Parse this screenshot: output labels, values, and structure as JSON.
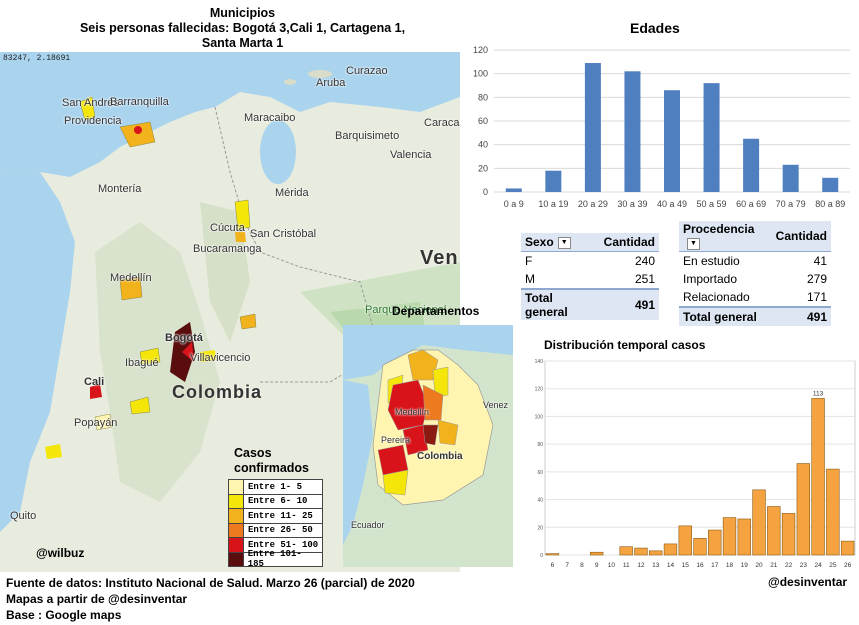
{
  "title": {
    "line1": "Municipios",
    "line2": "Seis personas fallecidas:  Bogotá 3,Cali 1, Cartagena 1,",
    "line3": "Santa Marta 1"
  },
  "map1": {
    "coords": "83247, 2.18691",
    "labels": [
      "San Andrés",
      "Providencia",
      "Barranquilla",
      "Curazao",
      "Aruba",
      "Maracaibo",
      "Barquisimeto",
      "Caracas",
      "Valencia",
      "Montería",
      "Mérida",
      "Cúcuta",
      "San Cristóbal",
      "Bucaramanga",
      "Medellín",
      "Ven",
      "Parque Nacional",
      "Bogotá",
      "Ibagué",
      "Villavicencio",
      "Cali",
      "Popayán",
      "Quito"
    ],
    "country": "Colombia",
    "legend_title": "Casos confirmados",
    "legend": [
      {
        "label": "Entre 1- 5",
        "color": "#fff5b0"
      },
      {
        "label": "Entre 6- 10",
        "color": "#f5e60a"
      },
      {
        "label": "Entre 11- 25",
        "color": "#f2b21c"
      },
      {
        "label": "Entre 26- 50",
        "color": "#ee7a20"
      },
      {
        "label": "Entre 51- 100",
        "color": "#d8141a"
      },
      {
        "label": "Entre 101- 185",
        "color": "#5a0d0d"
      }
    ],
    "credit": "@wilbuz"
  },
  "map2": {
    "title": "Departamentos",
    "labels": [
      "Medellín",
      "Pereira",
      "Colombia",
      "Ecuador",
      "Venez"
    ]
  },
  "chart_data": [
    {
      "type": "bar",
      "title": "Edades",
      "categories": [
        "0 a 9",
        "10 a 19",
        "20 a 29",
        "30 a 39",
        "40 a 49",
        "50 a 59",
        "60 a 69",
        "70 a 79",
        "80 a 89"
      ],
      "values": [
        3,
        18,
        109,
        102,
        86,
        92,
        45,
        23,
        12
      ],
      "ylim": [
        0,
        120
      ],
      "yticks": [
        0,
        20,
        40,
        60,
        80,
        100,
        120
      ],
      "color": "#4f7fbf",
      "grid": true
    },
    {
      "type": "bar",
      "title": "Distribución  temporal casos",
      "categories": [
        "6",
        "7",
        "8",
        "9",
        "10",
        "11",
        "12",
        "13",
        "14",
        "15",
        "16",
        "17",
        "18",
        "19",
        "20",
        "21",
        "22",
        "23",
        "24",
        "25",
        "26"
      ],
      "values": [
        1,
        0,
        0,
        2,
        0,
        6,
        5,
        3,
        8,
        21,
        12,
        18,
        27,
        26,
        47,
        35,
        30,
        66,
        113,
        62,
        10
      ],
      "ylim": [
        0,
        140
      ],
      "yticks": [
        0,
        20,
        40,
        60,
        80,
        100,
        120,
        140
      ],
      "peak_label": "113",
      "color": "#f5a340",
      "grid": true
    }
  ],
  "sexo_table": {
    "headers": [
      "Sexo",
      "Cantidad"
    ],
    "rows": [
      [
        "F",
        "240"
      ],
      [
        "M",
        "251"
      ]
    ],
    "total": [
      "Total general",
      "491"
    ]
  },
  "procedencia_table": {
    "headers": [
      "Procedencia",
      "Cantidad"
    ],
    "rows": [
      [
        "En estudio",
        "41"
      ],
      [
        "Importado",
        "279"
      ],
      [
        "Relacionado",
        "171"
      ]
    ],
    "total": [
      "Total general",
      "491"
    ]
  },
  "footer": {
    "line1": "Fuente de datos: Instituto  Nacional de Salud. Marzo 26 (parcial) de 2020",
    "line2": "Mapas a partir de @desinventar",
    "line3": "Base : Google maps",
    "credit": "@desinventar"
  }
}
